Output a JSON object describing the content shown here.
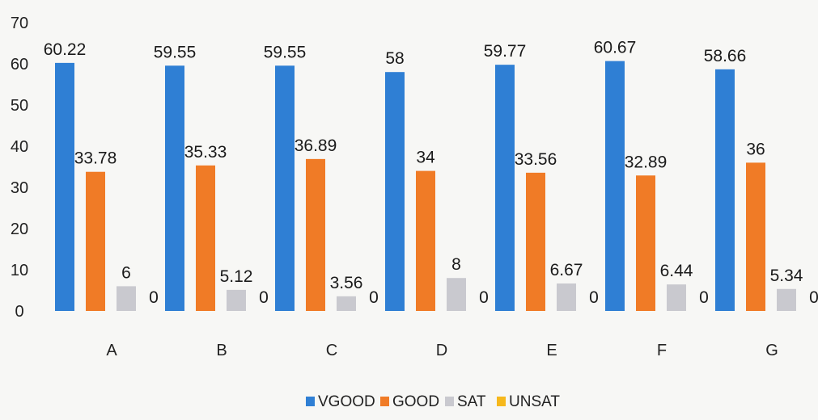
{
  "chart_data": {
    "type": "bar",
    "categories": [
      "A",
      "B",
      "C",
      "D",
      "E",
      "F",
      "G"
    ],
    "series": [
      {
        "name": "VGOOD",
        "color": "#2f7fd4",
        "values": [
          60.22,
          59.55,
          59.55,
          58,
          59.77,
          60.67,
          58.66
        ]
      },
      {
        "name": "GOOD",
        "color": "#f07b26",
        "values": [
          33.78,
          35.33,
          36.89,
          34,
          33.56,
          32.89,
          36
        ]
      },
      {
        "name": "SAT",
        "color": "#c9c9cf",
        "values": [
          6,
          5.12,
          3.56,
          8,
          6.67,
          6.44,
          5.34
        ]
      },
      {
        "name": "UNSAT",
        "color": "#f6b81c",
        "values": [
          0,
          0,
          0,
          0,
          0,
          0,
          0
        ]
      }
    ],
    "ylim": [
      0,
      70
    ],
    "yticks": [
      0,
      10,
      20,
      30,
      40,
      50,
      60,
      70
    ],
    "grid": false,
    "legend_position": "bottom"
  }
}
